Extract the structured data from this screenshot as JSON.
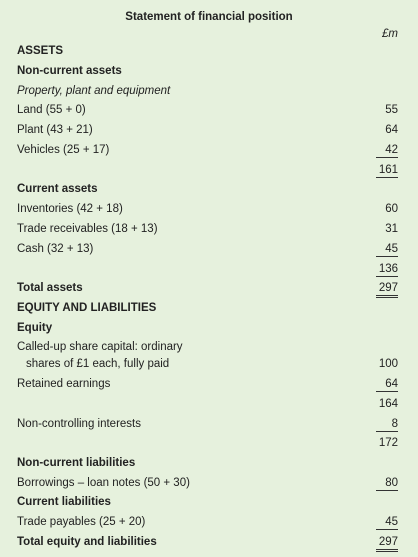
{
  "title": "Statement of financial position",
  "unit": "£m",
  "rows": [
    {
      "label": "ASSETS"
    },
    {
      "label": "Non-current assets"
    },
    {
      "label": "Property, plant and equipment"
    },
    {
      "label": "Land (55 + 0)",
      "value": 55
    },
    {
      "label": "Plant (43 + 21)",
      "value": 64
    },
    {
      "label": "Vehicles (25 + 17)",
      "value": 42
    },
    {
      "value": 161
    },
    {
      "label": "Current assets"
    },
    {
      "label": "Inventories (42 + 18)",
      "value": 60
    },
    {
      "label": "Trade receivables (18 + 13)",
      "value": 31
    },
    {
      "label": "Cash (32 + 13)",
      "value": 45
    },
    {
      "value": 136
    },
    {
      "label": "Total assets",
      "value": 297
    },
    {
      "label": "EQUITY AND LIABILITIES"
    },
    {
      "label": "Equity"
    },
    {
      "label": "Called-up share capital: ordinary"
    },
    {
      "label": "shares of £1 each, fully paid",
      "value": 100
    },
    {
      "label": "Retained earnings",
      "value": 64
    },
    {
      "value": 164
    },
    {
      "label": "Non-controlling interests",
      "value": 8
    },
    {
      "value": 172
    },
    {
      "label": "Non-current liabilities"
    },
    {
      "label": "Borrowings – loan notes (50 + 30)",
      "value": 80
    },
    {
      "label": "Current liabilities"
    },
    {
      "label": "Trade payables (25 + 20)",
      "value": 45
    },
    {
      "label": "Total equity and liabilities",
      "value": 297
    }
  ]
}
